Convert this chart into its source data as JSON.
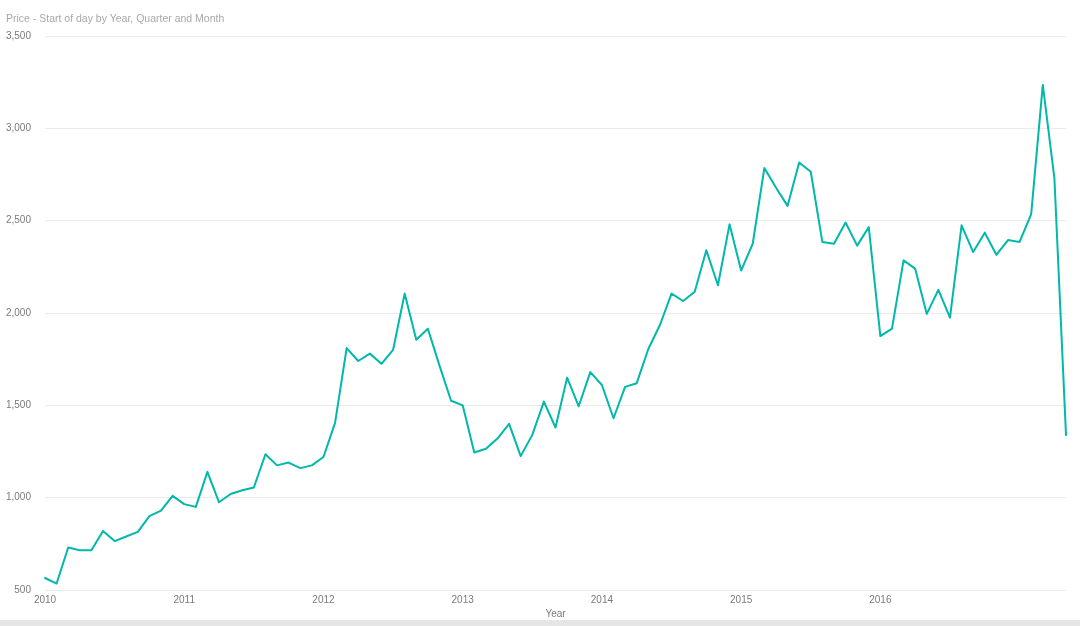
{
  "chart_data": {
    "type": "line",
    "title": "Price - Start of day by Year, Quarter and Month",
    "xlabel": "Year",
    "categories": [
      "2010",
      null,
      null,
      null,
      null,
      null,
      null,
      null,
      null,
      null,
      null,
      null,
      "2011",
      null,
      null,
      null,
      null,
      null,
      null,
      null,
      null,
      null,
      null,
      null,
      "2012",
      null,
      null,
      null,
      null,
      null,
      null,
      null,
      null,
      null,
      null,
      null,
      "2013",
      null,
      null,
      null,
      null,
      null,
      null,
      null,
      null,
      null,
      null,
      null,
      "2014",
      null,
      null,
      null,
      null,
      null,
      null,
      null,
      null,
      null,
      null,
      null,
      "2015",
      null,
      null,
      null,
      null,
      null,
      null,
      null,
      null,
      null,
      null,
      null,
      "2016",
      null,
      null,
      null,
      null,
      null,
      null,
      null,
      null,
      null,
      null,
      null,
      null,
      null,
      null,
      null,
      null
    ],
    "series": [
      {
        "color": "#01b8aa",
        "values": [
          565,
          535,
          730,
          715,
          715,
          820,
          765,
          790,
          815,
          900,
          930,
          1010,
          965,
          950,
          1140,
          975,
          1020,
          1040,
          1055,
          1235,
          1175,
          1190,
          1160,
          1175,
          1220,
          1405,
          1810,
          1740,
          1780,
          1725,
          1800,
          2105,
          1855,
          1915,
          1715,
          1525,
          1500,
          1245,
          1265,
          1320,
          1400,
          1225,
          1340,
          1520,
          1380,
          1650,
          1495,
          1680,
          1610,
          1430,
          1600,
          1620,
          1805,
          1935,
          2105,
          2065,
          2115,
          2340,
          2150,
          2480,
          2230,
          2375,
          2785,
          2680,
          2580,
          2815,
          2765,
          2385,
          2375,
          2490,
          2365,
          2465,
          1875,
          1915,
          2285,
          2240,
          1995,
          2125,
          1975,
          2475,
          2330,
          2435,
          2315,
          2395,
          2385,
          2535,
          3235,
          2730,
          1340
        ]
      }
    ],
    "ylim": [
      500,
      3500
    ],
    "yticks": [
      500,
      {
        "value": 1000,
        "label": "1,000"
      },
      {
        "value": 1500,
        "label": "1,500"
      },
      {
        "value": 2000,
        "label": "2,000"
      },
      {
        "value": 2500,
        "label": "2,500"
      },
      {
        "value": 3000,
        "label": "3,000"
      },
      {
        "value": 3500,
        "label": "3,500"
      }
    ],
    "grid": "y"
  }
}
